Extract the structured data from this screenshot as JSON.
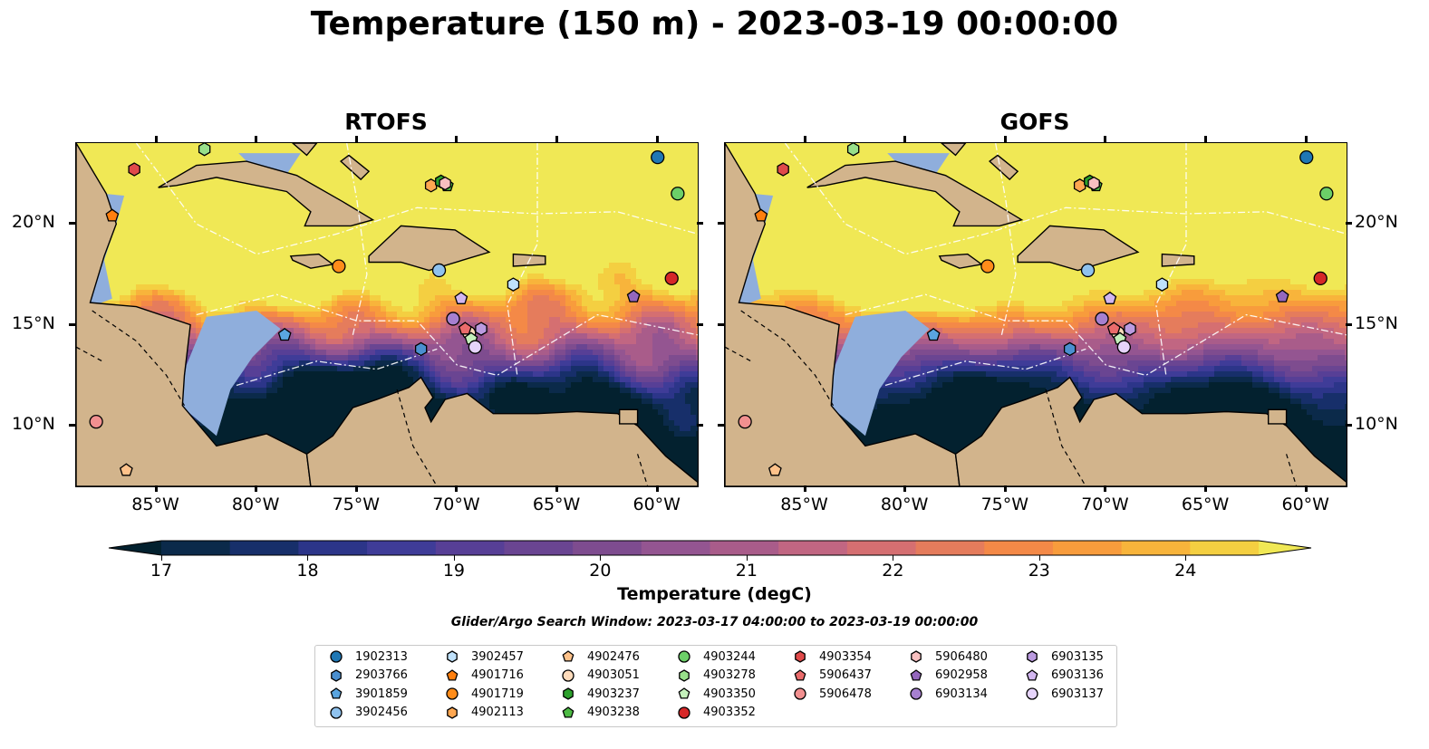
{
  "title": "Temperature (150 m) - 2023-03-19 00:00:00",
  "panels": [
    {
      "title": "RTOFS",
      "id": "rtofs"
    },
    {
      "title": "GOFS",
      "id": "gofs"
    }
  ],
  "map": {
    "lon_range": [
      -89,
      -58
    ],
    "lat_range": [
      7,
      24
    ],
    "lon_ticks": [
      "85°W",
      "80°W",
      "75°W",
      "70°W",
      "65°W",
      "60°W"
    ],
    "lon_tick_values": [
      -85,
      -80,
      -75,
      -70,
      -65,
      -60
    ],
    "lat_ticks": [
      "20°N",
      "15°N",
      "10°N"
    ],
    "lat_tick_values": [
      20,
      15,
      10
    ],
    "land_color": "#d2b48c",
    "ocean_color": "#8faedc"
  },
  "colorbar": {
    "labels": [
      "17",
      "18",
      "19",
      "20",
      "21",
      "22",
      "23",
      "24"
    ],
    "title": "Temperature (degC)",
    "vmin": 17.0,
    "vmax": 24.5,
    "colors": [
      "#03212f",
      "#0b2a4a",
      "#172f6a",
      "#2c3589",
      "#3f3c98",
      "#573f96",
      "#6a4592",
      "#7e4c8f",
      "#945591",
      "#a95c8a",
      "#c16682",
      "#d56f71",
      "#e57c5c",
      "#f48947",
      "#f89c3c",
      "#f8b43b",
      "#f4cf41",
      "#f0e855"
    ]
  },
  "search_window": "Glider/Argo Search Window: 2023-03-17 04:00:00 to 2023-03-19 00:00:00",
  "legend": [
    {
      "id": "1902313",
      "marker": "circle",
      "color": "#1f77b4"
    },
    {
      "id": "2903766",
      "marker": "hexagon",
      "color": "#4a8fd0"
    },
    {
      "id": "3901859",
      "marker": "pentagon",
      "color": "#5aa5e0"
    },
    {
      "id": "3902456",
      "marker": "circle",
      "color": "#8fc2ee"
    },
    {
      "id": "3902457",
      "marker": "hexagon",
      "color": "#bfe1fb"
    },
    {
      "id": "4901716",
      "marker": "pentagon",
      "color": "#ff7f0e"
    },
    {
      "id": "4901719",
      "marker": "circle",
      "color": "#ff8c1a"
    },
    {
      "id": "4902113",
      "marker": "hexagon",
      "color": "#ffa751"
    },
    {
      "id": "4902476",
      "marker": "pentagon",
      "color": "#ffc28a"
    },
    {
      "id": "4903051",
      "marker": "circle",
      "color": "#ffdcbc"
    },
    {
      "id": "4903237",
      "marker": "hexagon",
      "color": "#2ca02c"
    },
    {
      "id": "4903238",
      "marker": "pentagon",
      "color": "#4dbb44"
    },
    {
      "id": "4903244",
      "marker": "circle",
      "color": "#6ccf68"
    },
    {
      "id": "4903278",
      "marker": "hexagon",
      "color": "#98df8a"
    },
    {
      "id": "4903350",
      "marker": "pentagon",
      "color": "#c4f0bb"
    },
    {
      "id": "4903352",
      "marker": "circle",
      "color": "#d62728"
    },
    {
      "id": "4903354",
      "marker": "hexagon",
      "color": "#e04a4a"
    },
    {
      "id": "5906437",
      "marker": "pentagon",
      "color": "#ea6b6b"
    },
    {
      "id": "5906478",
      "marker": "circle",
      "color": "#f29090"
    },
    {
      "id": "5906480",
      "marker": "hexagon",
      "color": "#f8c0c0"
    },
    {
      "id": "6902958",
      "marker": "pentagon",
      "color": "#9467bd"
    },
    {
      "id": "6903134",
      "marker": "circle",
      "color": "#a680d0"
    },
    {
      "id": "6903135",
      "marker": "hexagon",
      "color": "#bb9be0"
    },
    {
      "id": "6903136",
      "marker": "pentagon",
      "color": "#d2b6f0"
    },
    {
      "id": "6903137",
      "marker": "circle",
      "color": "#e6d4fb"
    }
  ],
  "floats": [
    {
      "id": "1902313",
      "lon": -60.0,
      "lat": 23.3
    },
    {
      "id": "2903766",
      "lon": -71.8,
      "lat": 13.8
    },
    {
      "id": "3901859",
      "lon": -78.6,
      "lat": 14.5
    },
    {
      "id": "3902456",
      "lon": -70.9,
      "lat": 17.7
    },
    {
      "id": "3902457",
      "lon": -67.2,
      "lat": 17.0
    },
    {
      "id": "4901716",
      "lon": -87.2,
      "lat": 20.4
    },
    {
      "id": "4901719",
      "lon": -75.9,
      "lat": 17.9
    },
    {
      "id": "4902113",
      "lon": -71.3,
      "lat": 21.9
    },
    {
      "id": "4902476",
      "lon": -86.5,
      "lat": 7.8
    },
    {
      "id": "4903051",
      "lon": -69.4,
      "lat": 14.6
    },
    {
      "id": "4903237",
      "lon": -70.8,
      "lat": 22.1
    },
    {
      "id": "4903238",
      "lon": -70.5,
      "lat": 21.9
    },
    {
      "id": "4903244",
      "lon": -59.0,
      "lat": 21.5
    },
    {
      "id": "4903278",
      "lon": -82.6,
      "lat": 23.7
    },
    {
      "id": "4903350",
      "lon": -69.3,
      "lat": 14.3
    },
    {
      "id": "4903352",
      "lon": -59.3,
      "lat": 17.3
    },
    {
      "id": "4903354",
      "lon": -86.1,
      "lat": 22.7
    },
    {
      "id": "5906437",
      "lon": -69.6,
      "lat": 14.8
    },
    {
      "id": "5906478",
      "lon": -88.0,
      "lat": 10.2
    },
    {
      "id": "5906480",
      "lon": -70.6,
      "lat": 22.0
    },
    {
      "id": "6902958",
      "lon": -61.2,
      "lat": 16.4
    },
    {
      "id": "6903134",
      "lon": -70.2,
      "lat": 15.3
    },
    {
      "id": "6903135",
      "lon": -68.8,
      "lat": 14.8
    },
    {
      "id": "6903136",
      "lon": -69.8,
      "lat": 16.3
    },
    {
      "id": "6903137",
      "lon": -69.1,
      "lat": 13.9
    }
  ]
}
